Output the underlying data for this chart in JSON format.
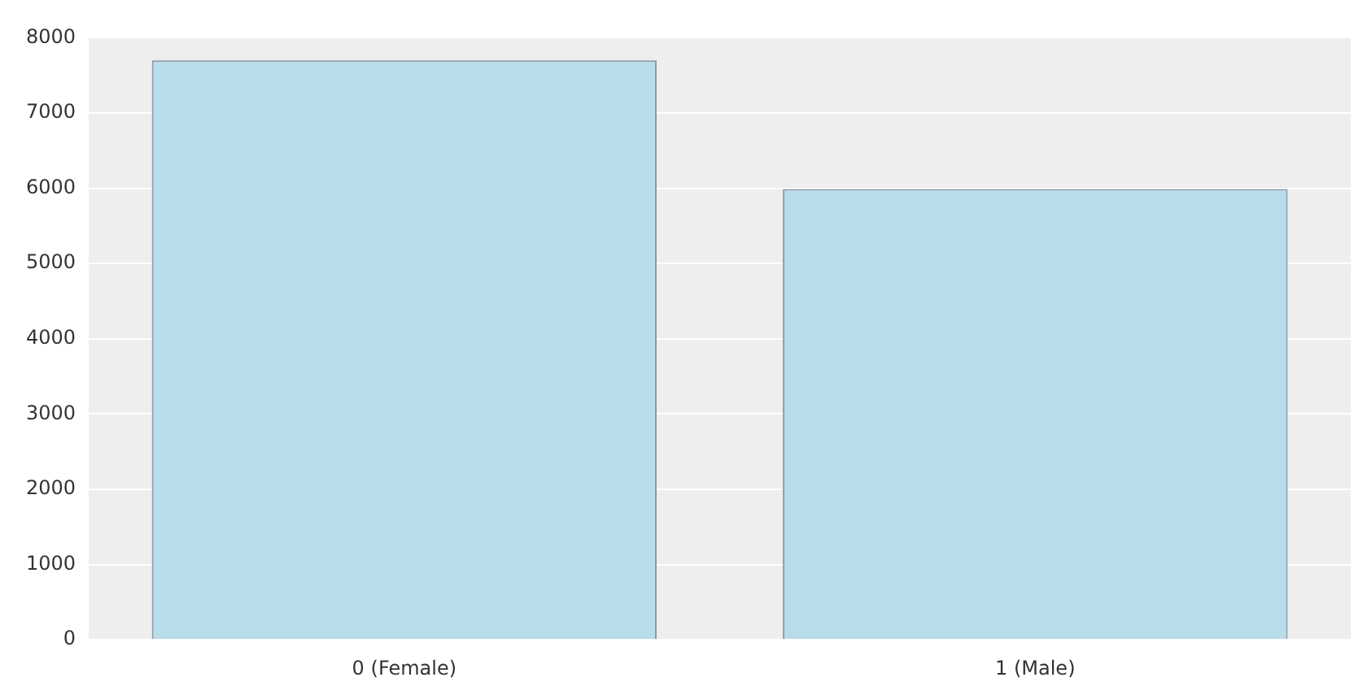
{
  "chart_data": {
    "type": "bar",
    "categories": [
      "0 (Female)",
      "1 (Male)"
    ],
    "values": [
      7700,
      5990
    ],
    "color": "#b8dcea",
    "ylim": [
      0,
      8000
    ],
    "yticks": [
      0,
      1000,
      2000,
      3000,
      4000,
      5000,
      6000,
      7000,
      8000
    ],
    "grid": "y"
  }
}
